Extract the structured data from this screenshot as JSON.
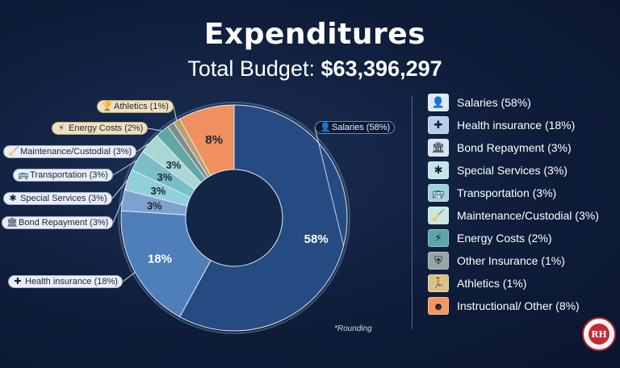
{
  "header": {
    "title": "Expenditures",
    "subtitle_prefix": "Total Budget: ",
    "subtitle_amount": "$63,396,297"
  },
  "chart_data": {
    "type": "pie",
    "donut": true,
    "title": "Expenditures",
    "subtitle": "Total Budget: $63,396,297",
    "slices": [
      {
        "name": "Salaries",
        "value": 58,
        "label": "58%",
        "callout": "Salaries (58%)",
        "color": "#254b82",
        "icon": "person-icon"
      },
      {
        "name": "Health insurance",
        "value": 18,
        "label": "18%",
        "callout": "Health insurance (18%)",
        "color": "#4f7fb8",
        "icon": "medical-cross-icon"
      },
      {
        "name": "Bond Repayment",
        "value": 3,
        "label": "3%",
        "callout": "Bond Repayment (3%)",
        "color": "#7ea2cf",
        "icon": "bank-icon"
      },
      {
        "name": "Special Services",
        "value": 3,
        "label": "3%",
        "callout": "Special Services (3%)",
        "color": "#8fd0d9",
        "icon": "snowflake-icon"
      },
      {
        "name": "Transportation",
        "value": 3,
        "label": "3%",
        "callout": "Transportation (3%)",
        "color": "#78bfc7",
        "icon": "bus-icon"
      },
      {
        "name": "Maintenance/Custodial",
        "value": 3,
        "label": "3%",
        "callout": "Maintenance/Custodial (3%)",
        "color": "#a9d8d2",
        "icon": "broom-icon"
      },
      {
        "name": "Energy Costs",
        "value": 2,
        "label": "",
        "callout": "Energy Costs (2%)",
        "color": "#60a7a6",
        "icon": "lightning-icon"
      },
      {
        "name": "Other Insurance",
        "value": 1,
        "label": "",
        "callout": "",
        "color": "#7e8a8e",
        "icon": "shield-hand-icon"
      },
      {
        "name": "Athletics",
        "value": 1,
        "label": "",
        "callout": "Athletics (1%)",
        "color": "#b9a36a",
        "icon": "trophy-icon"
      },
      {
        "name": "Instructional/ Other",
        "value": 8,
        "label": "8%",
        "callout": "",
        "color": "#f0915f",
        "icon": "head-icon"
      }
    ],
    "legend": [
      {
        "label": "Salaries (58%)",
        "color": "#dfe8f6",
        "icon": "person-icon",
        "glyph": "👤"
      },
      {
        "label": "Health insurance (18%)",
        "color": "#b7cde9",
        "icon": "medical-cross-icon",
        "glyph": "✚"
      },
      {
        "label": "Bond Repayment (3%)",
        "color": "#d9e1ed",
        "icon": "bank-icon",
        "glyph": "🏛"
      },
      {
        "label": "Special Services (3%)",
        "color": "#c4e6ea",
        "icon": "snowflake-icon",
        "glyph": "✱"
      },
      {
        "label": "Transportation (3%)",
        "color": "#9fd3d8",
        "icon": "bus-icon",
        "glyph": "🚌"
      },
      {
        "label": "Maintenance/Custodial (3%)",
        "color": "#c6e7e2",
        "icon": "broom-icon",
        "glyph": "🧹"
      },
      {
        "label": "Energy Costs (2%)",
        "color": "#5aa7a5",
        "icon": "lightning-icon",
        "glyph": "⚡"
      },
      {
        "label": "Other Insurance (1%)",
        "color": "#99a4a7",
        "icon": "shield-hand-icon",
        "glyph": "⛨"
      },
      {
        "label": "Athletics (1%)",
        "color": "#d8c288",
        "icon": "runner-icon",
        "glyph": "🏃"
      },
      {
        "label": "Instructional/ Other (8%)",
        "color": "#f29664",
        "icon": "head-icon",
        "glyph": "☻"
      }
    ],
    "callouts": [
      {
        "label": "Salaries (58%)",
        "style": "dark",
        "glyph": "👤",
        "icon": "person-icon"
      },
      {
        "label": "Athletics (1%)",
        "style": "tan",
        "glyph": "🏆",
        "icon": "trophy-icon"
      },
      {
        "label": "Energy Costs (2%)",
        "style": "tan",
        "glyph": "⚡",
        "icon": "lightning-icon"
      },
      {
        "label": "Maintenance/Custodial (3%)",
        "style": "light",
        "glyph": "🧹",
        "icon": "broom-icon"
      },
      {
        "label": "Transportation (3%)",
        "style": "light",
        "glyph": "🚌",
        "icon": "bus-icon"
      },
      {
        "label": "Special Services (3%)",
        "style": "light",
        "glyph": "✱",
        "icon": "snowflake-icon"
      },
      {
        "label": "Bond Repayment (3%)",
        "style": "light",
        "glyph": "🏛",
        "icon": "bank-icon"
      },
      {
        "label": "Health insurance (18%)",
        "style": "light",
        "glyph": "✚",
        "icon": "medical-cross-icon"
      }
    ],
    "note": "*Rounding"
  },
  "logo": {
    "initials": "RH"
  }
}
